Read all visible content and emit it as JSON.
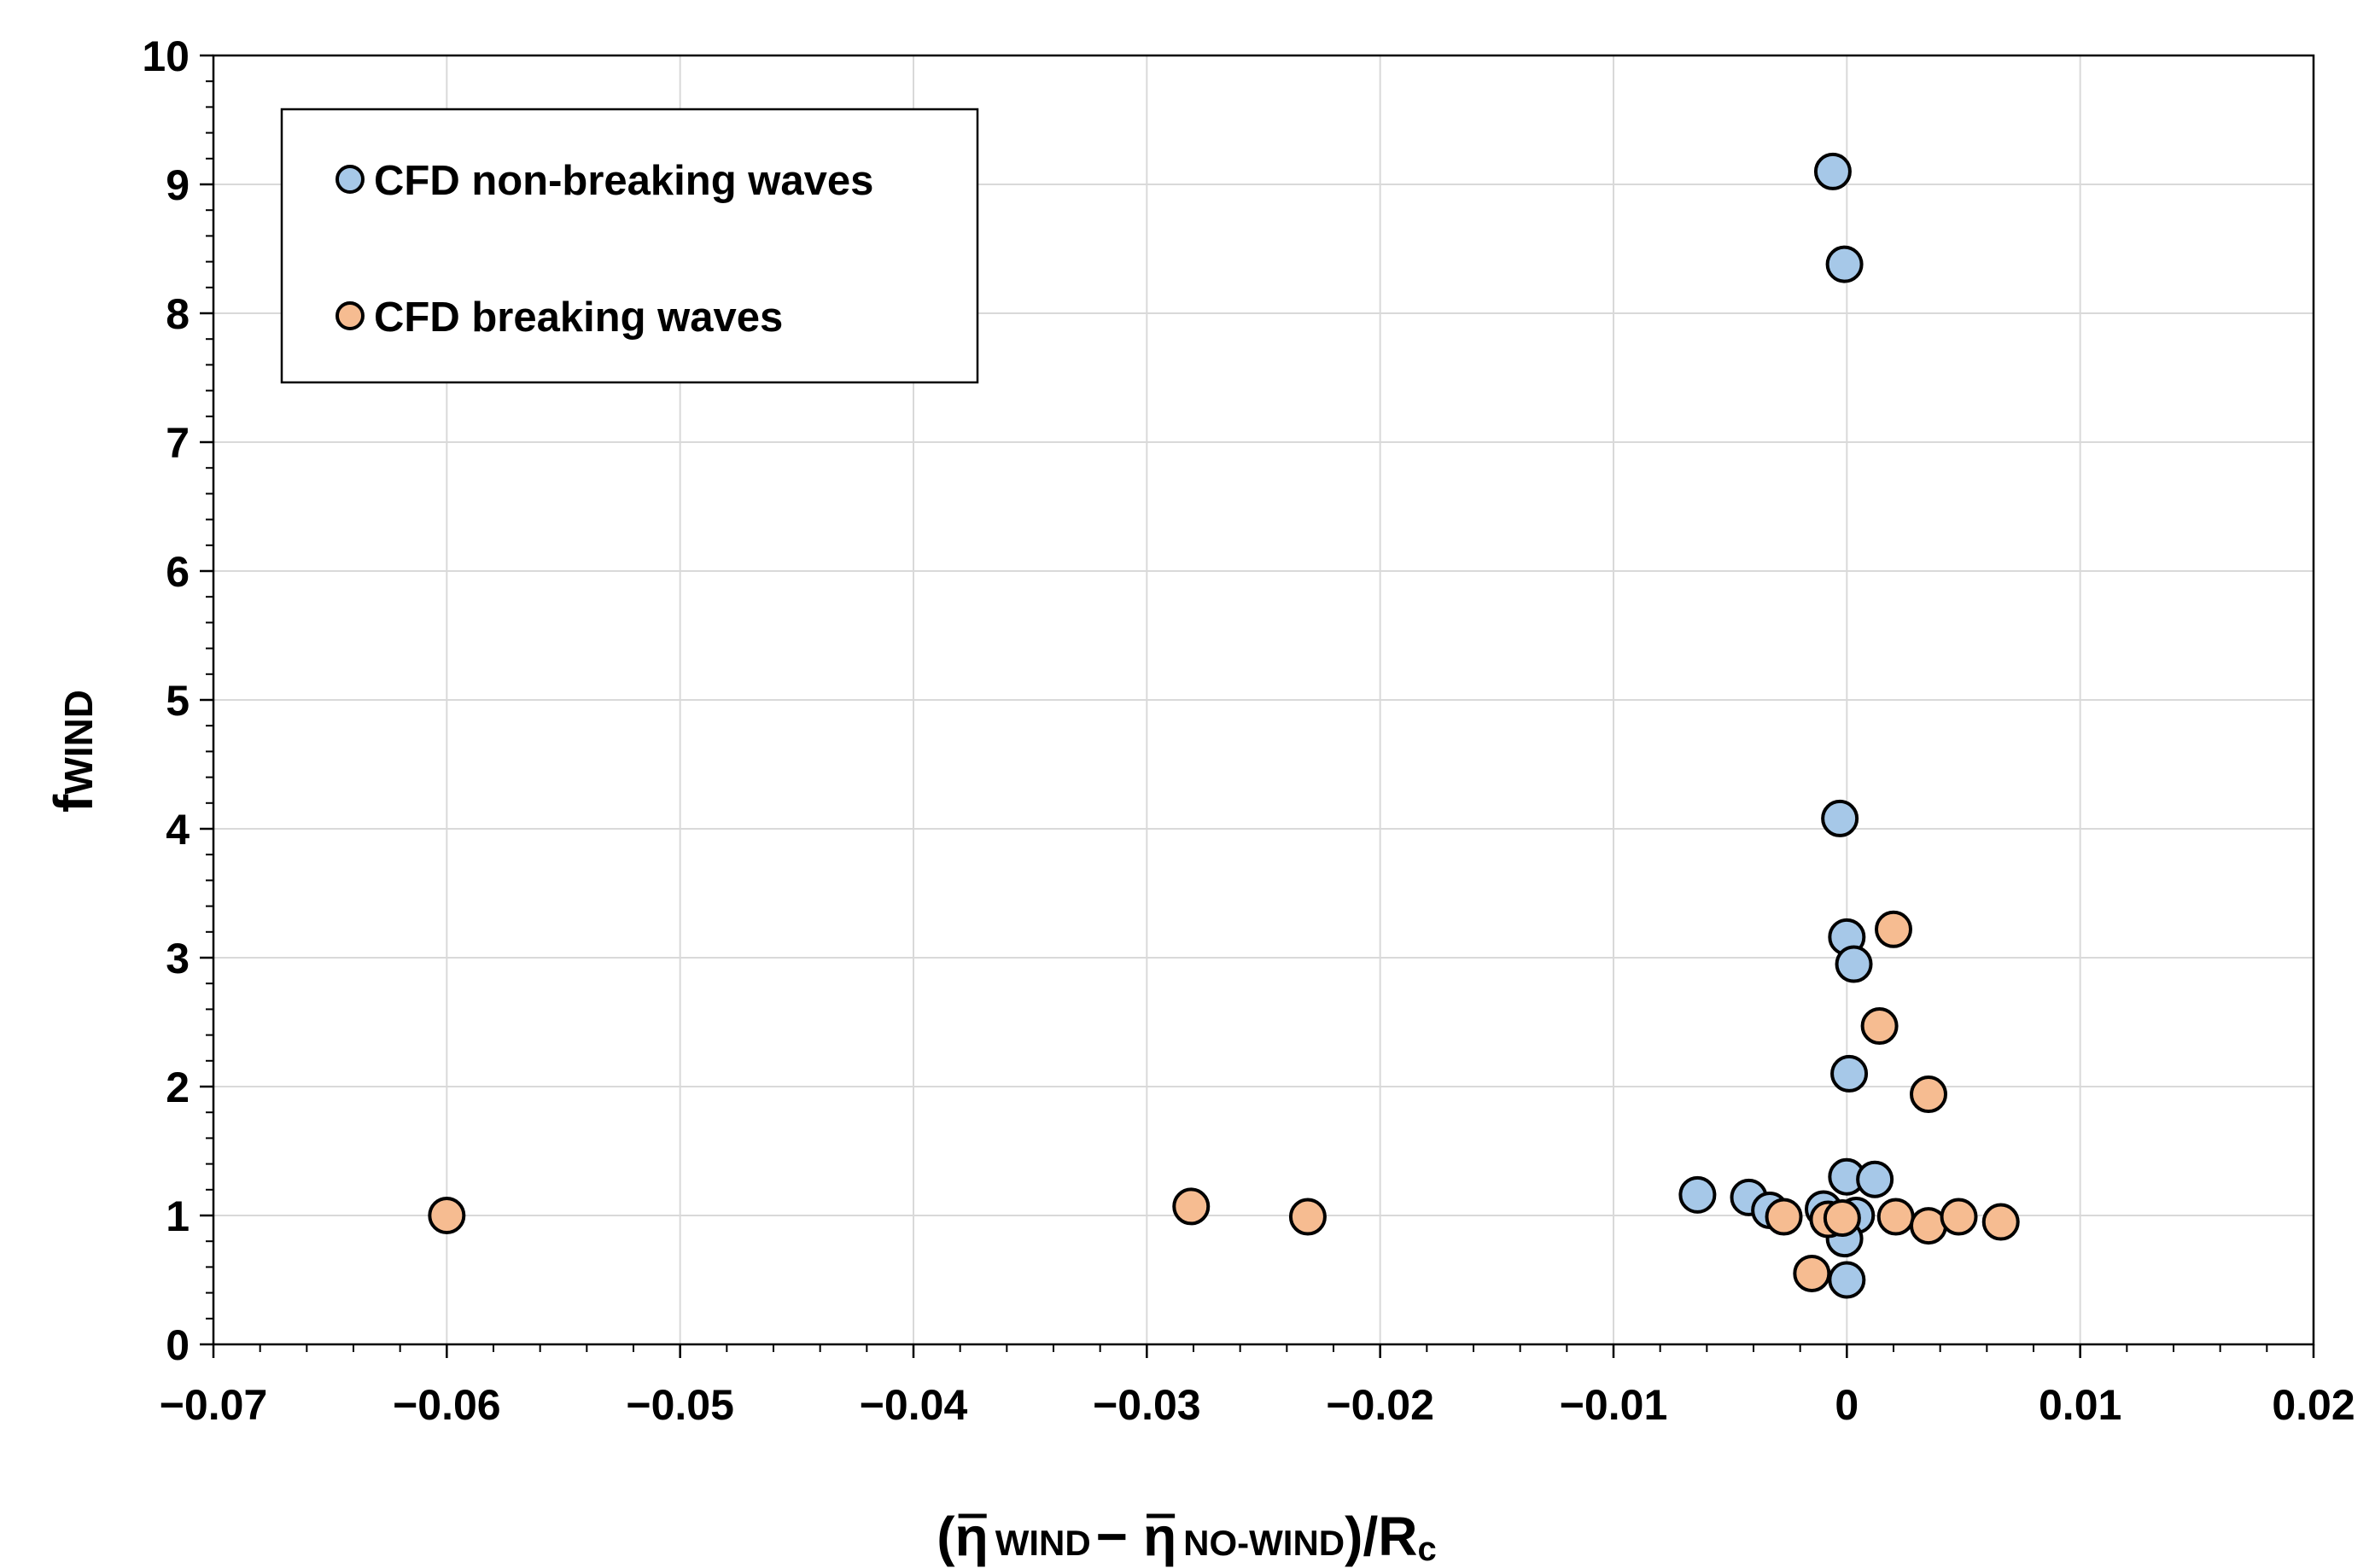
{
  "chart_data": {
    "type": "scatter",
    "title": "",
    "xlabel": {
      "open": "(",
      "eta1": "η",
      "sub1": "WIND",
      "minus": "−",
      "eta2": "η",
      "sub2": "NO-WIND",
      "close": ")/R",
      "sub3": "c"
    },
    "ylabel": {
      "main": "f",
      "sub": "WIND"
    },
    "xlim": [
      -0.07,
      0.02
    ],
    "ylim": [
      0,
      10
    ],
    "x_ticks": [
      -0.07,
      -0.06,
      -0.05,
      -0.04,
      -0.03,
      -0.02,
      -0.01,
      0,
      0.01,
      0.02
    ],
    "x_tick_labels": [
      "−0.07",
      "−0.06",
      "−0.05",
      "−0.04",
      "−0.03",
      "−0.02",
      "−0.01",
      "0",
      "0.01",
      "0.02"
    ],
    "y_ticks": [
      0,
      1,
      2,
      3,
      4,
      5,
      6,
      7,
      8,
      9,
      10
    ],
    "y_tick_labels": [
      "0",
      "1",
      "2",
      "3",
      "4",
      "5",
      "6",
      "7",
      "8",
      "9",
      "10"
    ],
    "grid": true,
    "legend_position": "top-left",
    "series": [
      {
        "name": "CFD non-breaking waves",
        "color": "#a6c8e8",
        "points": [
          {
            "x": -0.0006,
            "y": 9.1
          },
          {
            "x": -0.0001,
            "y": 8.38
          },
          {
            "x": -0.0003,
            "y": 4.08
          },
          {
            "x": 0.0,
            "y": 3.16
          },
          {
            "x": 0.0003,
            "y": 2.95
          },
          {
            "x": 0.0001,
            "y": 2.1
          },
          {
            "x": -0.0064,
            "y": 1.16
          },
          {
            "x": -0.0042,
            "y": 1.14
          },
          {
            "x": -0.0033,
            "y": 1.04
          },
          {
            "x": -0.001,
            "y": 1.05
          },
          {
            "x": 0.0,
            "y": 1.3
          },
          {
            "x": 0.0012,
            "y": 1.28
          },
          {
            "x": 0.0004,
            "y": 1.0
          },
          {
            "x": -0.0001,
            "y": 0.82
          },
          {
            "x": 0.0,
            "y": 0.5
          }
        ]
      },
      {
        "name": "CFD breaking waves",
        "color": "#f6bc91",
        "points": [
          {
            "x": -0.06,
            "y": 1.0
          },
          {
            "x": -0.0281,
            "y": 1.07
          },
          {
            "x": -0.0231,
            "y": 0.99
          },
          {
            "x": -0.0015,
            "y": 0.55
          },
          {
            "x": -0.0027,
            "y": 0.99
          },
          {
            "x": -0.0008,
            "y": 0.97
          },
          {
            "x": -0.0002,
            "y": 0.98
          },
          {
            "x": 0.0021,
            "y": 0.99
          },
          {
            "x": 0.0035,
            "y": 0.92
          },
          {
            "x": 0.0048,
            "y": 0.99
          },
          {
            "x": 0.0066,
            "y": 0.95
          },
          {
            "x": 0.0014,
            "y": 2.47
          },
          {
            "x": 0.002,
            "y": 3.22
          },
          {
            "x": 0.0035,
            "y": 1.94
          }
        ]
      }
    ]
  }
}
